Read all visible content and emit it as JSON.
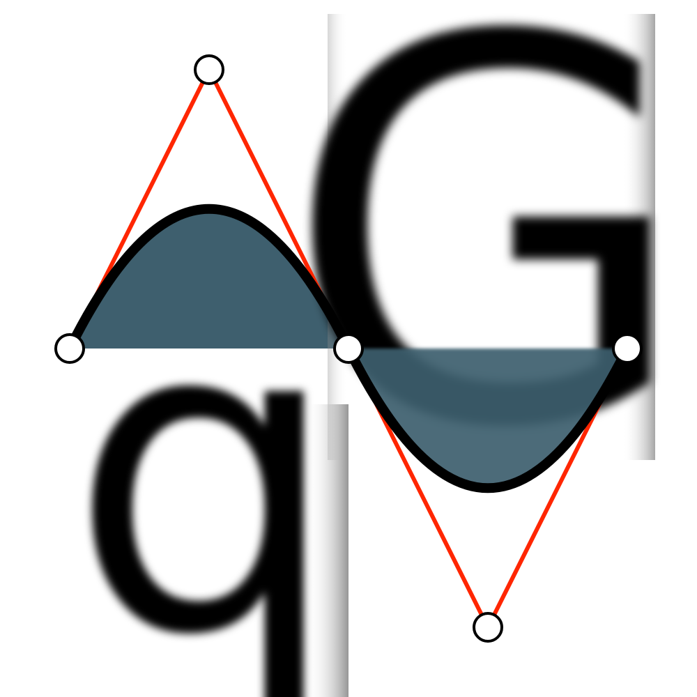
{
  "glyphs": {
    "upper": "G",
    "lower": "q"
  },
  "colors": {
    "background": "#ffffff",
    "fill_area": "#3e5f6e",
    "curve": "#000000",
    "control_lines": "#ff2600",
    "handle_fill": "#ffffff",
    "handle_stroke": "#000000",
    "glyph_color": "#000000",
    "glyph_backdrop": "#9a9a9a"
  },
  "icons": {
    "handle": "circle-handle-icon"
  }
}
